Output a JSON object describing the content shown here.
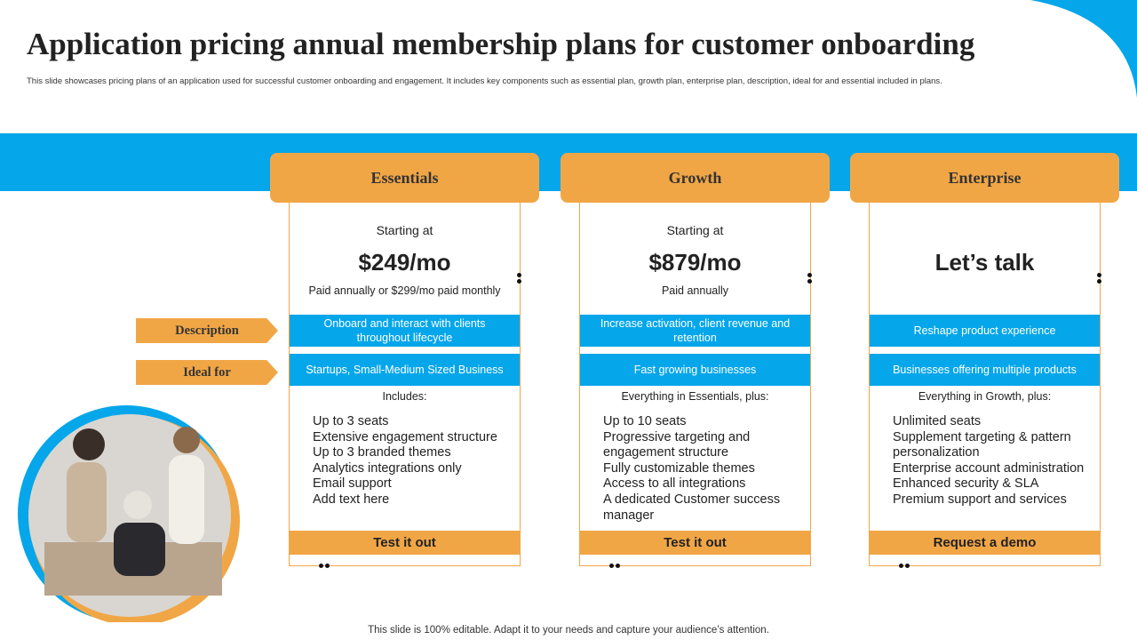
{
  "header": {
    "title": "Application pricing annual membership plans for customer onboarding",
    "subtitle": "This slide showcases pricing plans of an application used for successful customer onboarding and engagement. It includes key components such as essential plan, growth plan, enterprise plan, description, ideal for and essential included in plans."
  },
  "row_labels": [
    "Description",
    "Ideal for"
  ],
  "plans": [
    {
      "name": "Essentials",
      "starting": "Starting at",
      "price": "$249/mo",
      "billing": "Paid annually or $299/mo paid monthly",
      "description": "Onboard and interact with clients throughout lifecycle",
      "ideal_for": "Startups, Small-Medium Sized Business",
      "includes_heading": "Includes:",
      "features": [
        "Up to 3 seats",
        "Extensive engagement structure",
        "Up to 3 branded themes",
        "Analytics integrations only",
        "Email support",
        "Add text here"
      ],
      "button": "Test it out"
    },
    {
      "name": "Growth",
      "starting": "Starting at",
      "price": "$879/mo",
      "billing": "Paid annually",
      "description": "Increase activation, client revenue and retention",
      "ideal_for": "Fast growing businesses",
      "includes_heading": "Everything in Essentials, plus:",
      "features": [
        "Up to 10 seats",
        "Progressive targeting and engagement structure",
        "Fully customizable themes",
        "Access to all integrations",
        "A dedicated Customer success manager"
      ],
      "button": "Test it out"
    },
    {
      "name": "Enterprise",
      "price": "Let’s talk",
      "description": "Reshape product experience",
      "ideal_for": "Businesses offering multiple products",
      "includes_heading": "Everything in Growth, plus:",
      "features": [
        "Unlimited seats",
        "Supplement targeting & pattern personalization",
        "Enterprise account administration",
        "Enhanced security & SLA",
        "Premium support and services"
      ],
      "button": "Request a demo"
    }
  ],
  "footer": "This slide is 100% editable. Adapt it to your needs and capture your audience’s attention."
}
